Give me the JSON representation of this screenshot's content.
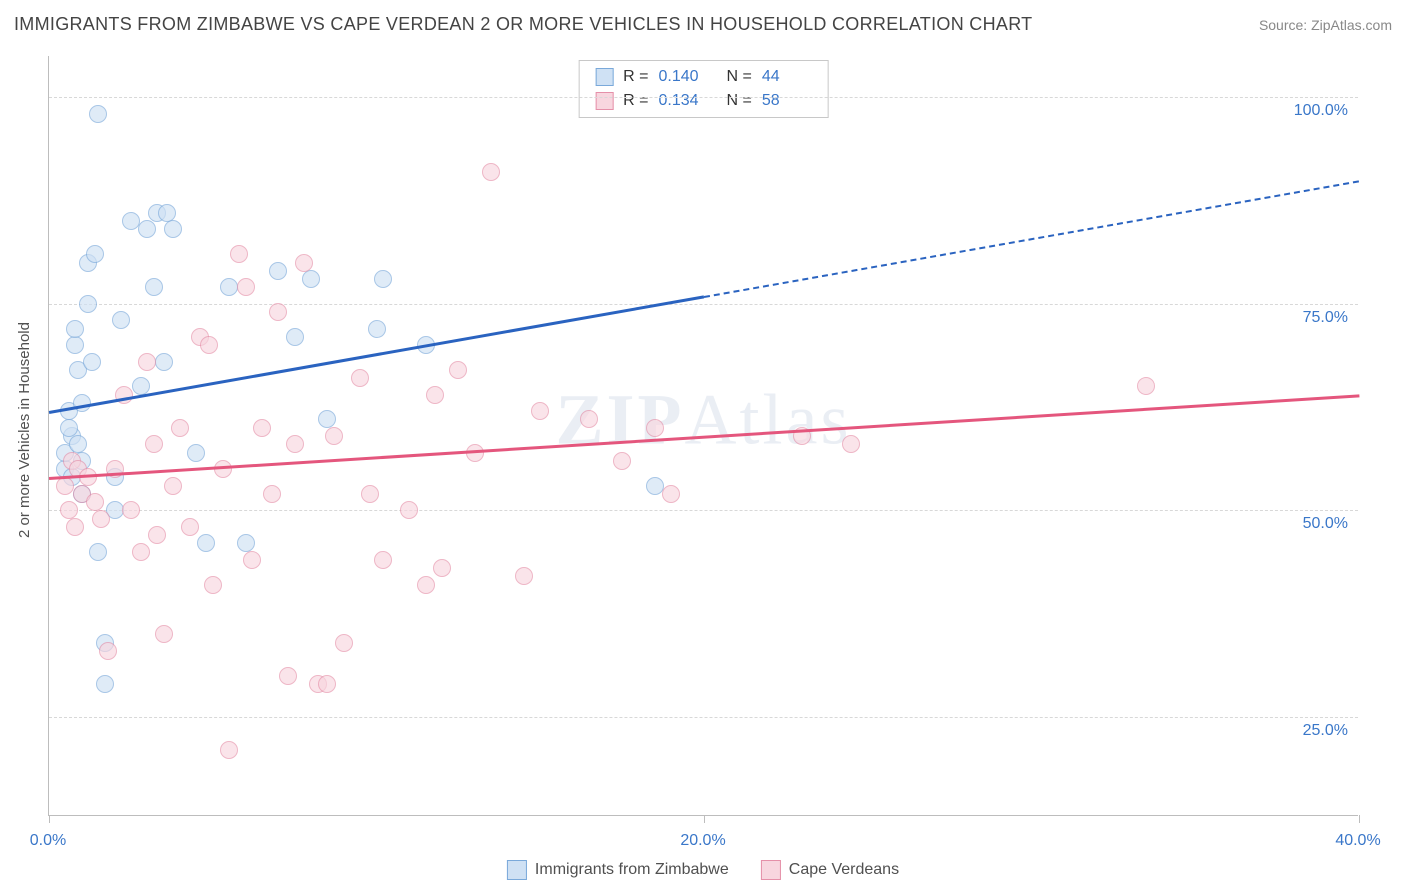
{
  "title": "IMMIGRANTS FROM ZIMBABWE VS CAPE VERDEAN 2 OR MORE VEHICLES IN HOUSEHOLD CORRELATION CHART",
  "source": "Source: ZipAtlas.com",
  "watermark": {
    "bold": "ZIP",
    "rest": "Atlas"
  },
  "y_axis_label": "2 or more Vehicles in Household",
  "chart": {
    "type": "scatter",
    "xlim": [
      0,
      40
    ],
    "ylim": [
      13,
      105
    ],
    "x_ticks": [
      0,
      20,
      40
    ],
    "x_tick_labels": [
      "0.0%",
      "20.0%",
      "40.0%"
    ],
    "y_gridlines": [
      25,
      50,
      75,
      100
    ],
    "y_tick_labels": [
      "25.0%",
      "50.0%",
      "75.0%",
      "100.0%"
    ],
    "grid_color": "#d8d8d8",
    "axis_color": "#bdbdbd",
    "background_color": "#ffffff",
    "point_radius": 9,
    "point_stroke_width": 1.5,
    "series": [
      {
        "name": "Immigrants from Zimbabwe",
        "fill_color": "#cfe1f4",
        "stroke_color": "#7aa9da",
        "fill_opacity": 0.65,
        "r_value": "0.140",
        "n_value": "44",
        "trend": {
          "x_solid_start": 0,
          "y_solid_start": 62,
          "x_solid_end": 20,
          "y_solid_end": 76,
          "x_dash_end": 40,
          "y_dash_end": 90,
          "color": "#2a63c0",
          "width": 2.5
        },
        "points": [
          [
            0.5,
            55
          ],
          [
            0.5,
            57
          ],
          [
            0.6,
            62
          ],
          [
            0.7,
            54
          ],
          [
            0.7,
            59
          ],
          [
            0.8,
            70
          ],
          [
            0.8,
            72
          ],
          [
            0.9,
            67
          ],
          [
            1.0,
            63
          ],
          [
            1.0,
            56
          ],
          [
            1.2,
            75
          ],
          [
            1.2,
            80
          ],
          [
            1.3,
            68
          ],
          [
            1.5,
            45
          ],
          [
            1.5,
            98
          ],
          [
            1.7,
            34
          ],
          [
            1.7,
            29
          ],
          [
            2.0,
            50
          ],
          [
            2.0,
            54
          ],
          [
            2.2,
            73
          ],
          [
            2.5,
            85
          ],
          [
            3.0,
            84
          ],
          [
            3.2,
            77
          ],
          [
            3.3,
            86
          ],
          [
            3.5,
            68
          ],
          [
            3.8,
            84
          ],
          [
            4.5,
            57
          ],
          [
            4.8,
            46
          ],
          [
            5.5,
            77
          ],
          [
            6.0,
            46
          ],
          [
            7.0,
            79
          ],
          [
            7.5,
            71
          ],
          [
            8.0,
            78
          ],
          [
            8.5,
            61
          ],
          [
            10.0,
            72
          ],
          [
            10.2,
            78
          ],
          [
            11.5,
            70
          ],
          [
            18.5,
            53
          ],
          [
            1.0,
            52
          ],
          [
            0.6,
            60
          ],
          [
            0.9,
            58
          ],
          [
            2.8,
            65
          ],
          [
            1.4,
            81
          ],
          [
            3.6,
            86
          ]
        ]
      },
      {
        "name": "Cape Verdeans",
        "fill_color": "#f8d6df",
        "stroke_color": "#e590a9",
        "fill_opacity": 0.65,
        "r_value": "0.134",
        "n_value": "58",
        "trend": {
          "x_solid_start": 0,
          "y_solid_start": 54,
          "x_solid_end": 40,
          "y_solid_end": 64,
          "x_dash_end": 40,
          "y_dash_end": 64,
          "color": "#e4567d",
          "width": 2.5
        },
        "points": [
          [
            0.5,
            53
          ],
          [
            0.6,
            50
          ],
          [
            0.7,
            56
          ],
          [
            0.8,
            48
          ],
          [
            0.9,
            55
          ],
          [
            1.0,
            52
          ],
          [
            1.2,
            54
          ],
          [
            1.4,
            51
          ],
          [
            1.6,
            49
          ],
          [
            1.8,
            33
          ],
          [
            2.0,
            55
          ],
          [
            2.3,
            64
          ],
          [
            2.5,
            50
          ],
          [
            2.8,
            45
          ],
          [
            3.0,
            68
          ],
          [
            3.2,
            58
          ],
          [
            3.5,
            35
          ],
          [
            3.8,
            53
          ],
          [
            4.0,
            60
          ],
          [
            4.3,
            48
          ],
          [
            4.6,
            71
          ],
          [
            5.0,
            41
          ],
          [
            5.3,
            55
          ],
          [
            5.8,
            81
          ],
          [
            5.5,
            21
          ],
          [
            6.2,
            44
          ],
          [
            6.5,
            60
          ],
          [
            6.8,
            52
          ],
          [
            7.0,
            74
          ],
          [
            7.3,
            30
          ],
          [
            7.5,
            58
          ],
          [
            7.8,
            80
          ],
          [
            8.2,
            29
          ],
          [
            8.5,
            29
          ],
          [
            8.7,
            59
          ],
          [
            9.0,
            34
          ],
          [
            9.5,
            66
          ],
          [
            10.2,
            44
          ],
          [
            11.0,
            50
          ],
          [
            11.5,
            41
          ],
          [
            11.8,
            64
          ],
          [
            12.0,
            43
          ],
          [
            12.5,
            67
          ],
          [
            13.0,
            57
          ],
          [
            13.5,
            91
          ],
          [
            14.5,
            42
          ],
          [
            15.0,
            62
          ],
          [
            16.5,
            61
          ],
          [
            17.5,
            56
          ],
          [
            18.5,
            60
          ],
          [
            19.0,
            52
          ],
          [
            23.0,
            59
          ],
          [
            24.5,
            58
          ],
          [
            33.5,
            65
          ],
          [
            4.9,
            70
          ],
          [
            6.0,
            77
          ],
          [
            9.8,
            52
          ],
          [
            3.3,
            47
          ]
        ]
      }
    ]
  },
  "legend": {
    "items": [
      {
        "label": "Immigrants from Zimbabwe",
        "fill": "#cfe1f4",
        "stroke": "#7aa9da"
      },
      {
        "label": "Cape Verdeans",
        "fill": "#f8d6df",
        "stroke": "#e590a9"
      }
    ]
  },
  "stats_box": {
    "r_label": "R =",
    "n_label": "N ="
  }
}
